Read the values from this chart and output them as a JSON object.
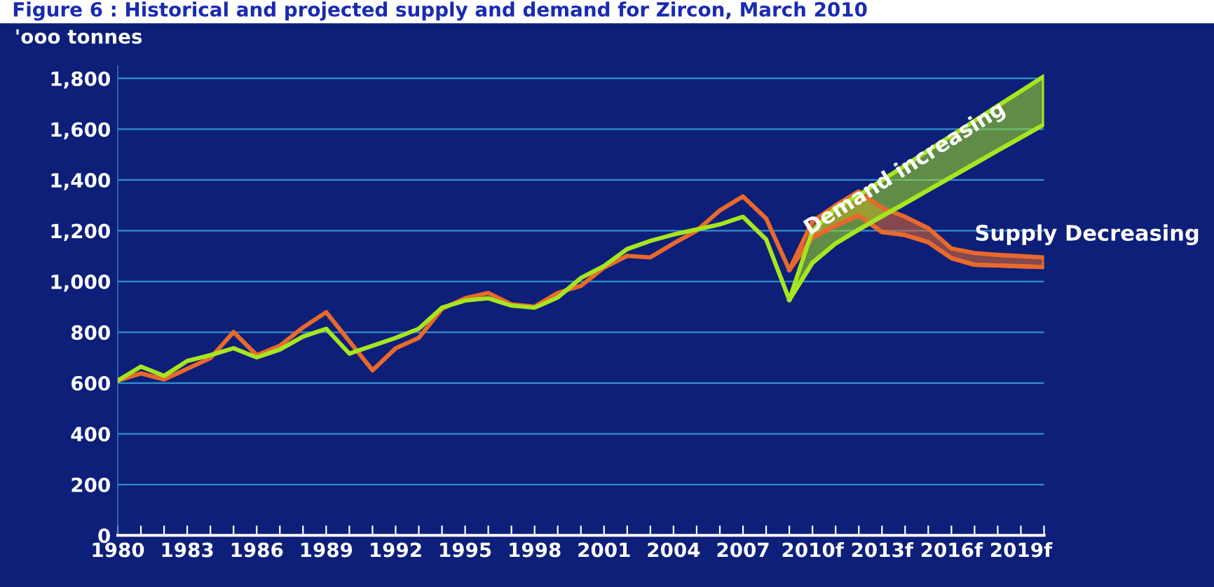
{
  "chart_data": {
    "type": "line",
    "title": "Figure 6 : Historical and projected supply and demand for Zircon, March 2010",
    "ylabel": "'ooo tonnes",
    "xlim": [
      1980,
      2020
    ],
    "ylim": [
      0,
      1850
    ],
    "xticks": [
      {
        "value": 1980,
        "label": "1980"
      },
      {
        "value": 1981,
        "label": null
      },
      {
        "value": 1982,
        "label": null
      },
      {
        "value": 1983,
        "label": "1983"
      },
      {
        "value": 1984,
        "label": null
      },
      {
        "value": 1985,
        "label": null
      },
      {
        "value": 1986,
        "label": "1986"
      },
      {
        "value": 1987,
        "label": null
      },
      {
        "value": 1988,
        "label": null
      },
      {
        "value": 1989,
        "label": "1989"
      },
      {
        "value": 1990,
        "label": null
      },
      {
        "value": 1991,
        "label": null
      },
      {
        "value": 1992,
        "label": "1992"
      },
      {
        "value": 1993,
        "label": null
      },
      {
        "value": 1994,
        "label": null
      },
      {
        "value": 1995,
        "label": "1995"
      },
      {
        "value": 1996,
        "label": null
      },
      {
        "value": 1997,
        "label": null
      },
      {
        "value": 1998,
        "label": "1998"
      },
      {
        "value": 1999,
        "label": null
      },
      {
        "value": 2000,
        "label": null
      },
      {
        "value": 2001,
        "label": "2001"
      },
      {
        "value": 2002,
        "label": null
      },
      {
        "value": 2003,
        "label": null
      },
      {
        "value": 2004,
        "label": "2004"
      },
      {
        "value": 2005,
        "label": null
      },
      {
        "value": 2006,
        "label": null
      },
      {
        "value": 2007,
        "label": "2007"
      },
      {
        "value": 2008,
        "label": null
      },
      {
        "value": 2009,
        "label": null
      },
      {
        "value": 2010,
        "label": "2010f"
      },
      {
        "value": 2011,
        "label": null
      },
      {
        "value": 2012,
        "label": null
      },
      {
        "value": 2013,
        "label": "2013f"
      },
      {
        "value": 2014,
        "label": null
      },
      {
        "value": 2015,
        "label": null
      },
      {
        "value": 2016,
        "label": "2016f"
      },
      {
        "value": 2017,
        "label": null
      },
      {
        "value": 2018,
        "label": null
      },
      {
        "value": 2019,
        "label": "2019f"
      },
      {
        "value": 2020,
        "label": null
      }
    ],
    "yticks": [
      0,
      200,
      400,
      600,
      800,
      {
        "value": 1000,
        "label": "1,000"
      },
      {
        "value": 1200,
        "label": "1,200"
      },
      {
        "value": 1400,
        "label": "1,400"
      },
      {
        "value": 1600,
        "label": "1,600"
      },
      {
        "value": 1800,
        "label": "1,800"
      }
    ],
    "grid": "y",
    "legend": false,
    "marker": "none",
    "line_style": "solid",
    "series": [
      {
        "color": "#e8692b",
        "x": [
          1980,
          1981,
          1982,
          1983,
          1984,
          1985,
          1986,
          1987,
          1988,
          1989,
          1990,
          1991,
          1992,
          1993,
          1994,
          1995,
          1996,
          1997,
          1998,
          1999,
          2000,
          2001,
          2002,
          2003,
          2004,
          2005,
          2006,
          2007,
          2008,
          2009
        ],
        "values": [
          610,
          638,
          614,
          656,
          698,
          801,
          710,
          747,
          819,
          879,
          765,
          650,
          737,
          778,
          892,
          934,
          955,
          910,
          901,
          955,
          983,
          1055,
          1101,
          1095,
          1150,
          1200,
          1280,
          1335,
          1248,
          1046
        ]
      },
      {
        "color": "#a6e51f",
        "x": [
          1980,
          1981,
          1982,
          1983,
          1984,
          1985,
          1986,
          1987,
          1988,
          1989,
          1990,
          1991,
          1992,
          1993,
          1994,
          1995,
          1996,
          1997,
          1998,
          1999,
          2000,
          2001,
          2002,
          2003,
          2004,
          2005,
          2006,
          2007,
          2008,
          2009
        ],
        "values": [
          610,
          665,
          628,
          687,
          710,
          737,
          701,
          732,
          783,
          814,
          716,
          747,
          778,
          814,
          897,
          925,
          934,
          905,
          897,
          937,
          1014,
          1061,
          1128,
          1160,
          1185,
          1205,
          1225,
          1255,
          1166,
          928
        ]
      },
      {
        "color": "#e8692b",
        "x": [
          2009,
          2010,
          2011,
          2012,
          2013,
          2014,
          2015,
          2016,
          2017,
          2018,
          2019,
          2020
        ],
        "values": [
          1046,
          1173,
          1220,
          1260,
          1195,
          1183,
          1155,
          1092,
          1066,
          1063,
          1060,
          1057
        ],
        "lower": [
          1046,
          1173,
          1220,
          1260,
          1195,
          1183,
          1155,
          1092,
          1066,
          1063,
          1060,
          1057
        ],
        "upper": [
          1046,
          1237,
          1300,
          1355,
          1290,
          1255,
          1210,
          1130,
          1112,
          1105,
          1100,
          1095
        ]
      },
      {
        "color": "#a6e51f",
        "x": [
          2009,
          2010,
          2011,
          2012,
          2013,
          2014,
          2015,
          2016,
          2017,
          2018,
          2019,
          2020
        ],
        "values": [
          928,
          1074,
          1150,
          1205,
          1257,
          1308,
          1360,
          1412,
          1464,
          1516,
          1567,
          1619
        ],
        "lower": [
          928,
          1074,
          1150,
          1205,
          1257,
          1308,
          1360,
          1412,
          1464,
          1516,
          1567,
          1619
        ],
        "upper": [
          928,
          1200,
          1290,
          1340,
          1399,
          1457,
          1516,
          1575,
          1633,
          1692,
          1750,
          1809
        ]
      }
    ],
    "annotations": [
      "Demand increasing",
      "Supply Decreasing"
    ]
  }
}
